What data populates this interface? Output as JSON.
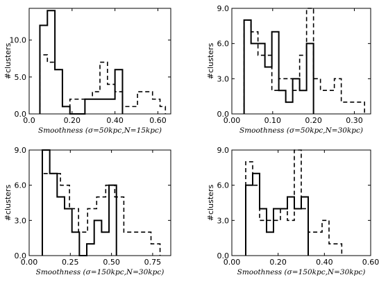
{
  "chart_data": [
    {
      "type": "histogram",
      "xlabel": "Smoothness (σ=50kpc,N=15kpc)",
      "ylabel": "#clusters",
      "xlim": [
        0.0,
        0.66
      ],
      "ylim": [
        0,
        14.3
      ],
      "xticks": [
        0.0,
        0.2,
        0.4,
        0.6
      ],
      "xtick_labels": [
        "0.0",
        "0.20",
        "0.40",
        "0.60"
      ],
      "yticks": [
        0,
        5,
        10
      ],
      "ytick_labels": [
        "0.0",
        "5.0",
        "10.0"
      ],
      "series": [
        {
          "style": "solid",
          "edges": [
            0.05,
            0.085,
            0.12,
            0.155,
            0.19,
            0.225,
            0.26,
            0.295,
            0.33,
            0.365,
            0.4,
            0.435
          ],
          "values": [
            12,
            14,
            6,
            1,
            0,
            0,
            2,
            2,
            2,
            2,
            6
          ]
        },
        {
          "style": "dashed",
          "edges": [
            0.05,
            0.085,
            0.12,
            0.155,
            0.19,
            0.225,
            0.26,
            0.295,
            0.33,
            0.365,
            0.4,
            0.435,
            0.47,
            0.505,
            0.54,
            0.575,
            0.61,
            0.635
          ],
          "values": [
            8,
            7,
            6,
            1,
            2,
            2,
            2,
            3,
            7,
            4,
            3,
            1,
            1,
            3,
            3,
            2,
            1
          ]
        }
      ]
    },
    {
      "type": "histogram",
      "xlabel": "Smoothness (σ=50kpc,N=30kpc)",
      "ylabel": "#clusters",
      "xlim": [
        0.0,
        0.34
      ],
      "ylim": [
        0,
        9.0
      ],
      "xticks": [
        0.0,
        0.1,
        0.2,
        0.3
      ],
      "xtick_labels": [
        "0.00",
        "0.10",
        "0.20",
        "0.30"
      ],
      "yticks": [
        0,
        3,
        6,
        9
      ],
      "ytick_labels": [
        "0.0",
        "3.0",
        "6.0",
        "9.0"
      ],
      "series": [
        {
          "style": "solid",
          "edges": [
            0.03,
            0.047,
            0.064,
            0.081,
            0.098,
            0.115,
            0.132,
            0.149,
            0.166,
            0.183,
            0.2
          ],
          "values": [
            8,
            6,
            6,
            4,
            7,
            2,
            1,
            3,
            2,
            6
          ]
        },
        {
          "style": "dashed",
          "edges": [
            0.03,
            0.047,
            0.064,
            0.081,
            0.098,
            0.115,
            0.132,
            0.149,
            0.166,
            0.183,
            0.2,
            0.217,
            0.234,
            0.251,
            0.268,
            0.285,
            0.302,
            0.325
          ],
          "values": [
            8,
            7,
            5,
            5,
            2,
            3,
            3,
            2,
            5,
            9,
            3,
            2,
            2,
            3,
            1,
            1,
            1
          ]
        }
      ]
    },
    {
      "type": "histogram",
      "xlabel": "Smoothness (σ=150kpc,N=30kpc)",
      "ylabel": "#clusters",
      "xlim": [
        0.0,
        0.86
      ],
      "ylim": [
        0,
        9.0
      ],
      "xticks": [
        0.0,
        0.25,
        0.5,
        0.75
      ],
      "xtick_labels": [
        "0.00",
        "0.25",
        "0.50",
        "0.75"
      ],
      "yticks": [
        0,
        3,
        6,
        9
      ],
      "ytick_labels": [
        "0.0",
        "3.0",
        "6.0",
        "9.0"
      ],
      "series": [
        {
          "style": "solid",
          "edges": [
            0.08,
            0.125,
            0.17,
            0.215,
            0.26,
            0.305,
            0.35,
            0.395,
            0.44,
            0.485,
            0.53
          ],
          "values": [
            9,
            7,
            5,
            4,
            2,
            0,
            1,
            3,
            2,
            6
          ]
        },
        {
          "style": "dashed",
          "edges": [
            0.08,
            0.135,
            0.19,
            0.245,
            0.3,
            0.355,
            0.41,
            0.465,
            0.52,
            0.575,
            0.63,
            0.685,
            0.74,
            0.795
          ],
          "values": [
            7,
            7,
            6,
            4,
            2,
            4,
            5,
            6,
            5,
            2,
            2,
            2,
            1
          ]
        }
      ]
    },
    {
      "type": "histogram",
      "xlabel": "Smoothness (σ=150kpc,N=30kpc)",
      "ylabel": "#clusters",
      "xlim": [
        0.0,
        0.6
      ],
      "ylim": [
        0,
        9.0
      ],
      "xticks": [
        0.0,
        0.2,
        0.4,
        0.6
      ],
      "xtick_labels": [
        "0.00",
        "0.20",
        "0.40",
        "0.60"
      ],
      "yticks": [
        0,
        3,
        6,
        9
      ],
      "ytick_labels": [
        "0.0",
        "3.0",
        "6.0",
        "9.0"
      ],
      "series": [
        {
          "style": "solid",
          "edges": [
            0.06,
            0.09,
            0.12,
            0.15,
            0.18,
            0.21,
            0.24,
            0.27,
            0.3,
            0.33
          ],
          "values": [
            6,
            7,
            4,
            2,
            4,
            4,
            5,
            4,
            5
          ]
        },
        {
          "style": "dashed",
          "edges": [
            0.06,
            0.09,
            0.12,
            0.15,
            0.18,
            0.21,
            0.24,
            0.27,
            0.3,
            0.33,
            0.36,
            0.39,
            0.42,
            0.45,
            0.475
          ],
          "values": [
            8,
            6,
            3,
            3,
            3,
            4,
            3,
            9,
            4,
            2,
            2,
            3,
            1,
            1
          ]
        }
      ]
    }
  ]
}
